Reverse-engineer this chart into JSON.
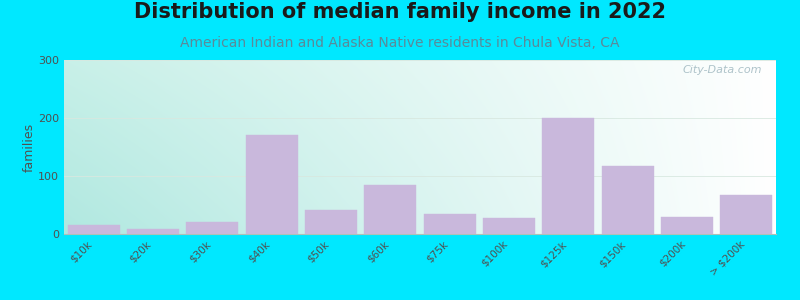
{
  "title": "Distribution of median family income in 2022",
  "subtitle": "American Indian and Alaska Native residents in Chula Vista, CA",
  "ylabel": "families",
  "categories": [
    "$10k",
    "$20k",
    "$30k",
    "$40k",
    "$50k",
    "$60k",
    "$75k",
    "$100k",
    "$125k",
    "$150k",
    "$200k",
    "> $200k"
  ],
  "values": [
    15,
    8,
    20,
    170,
    42,
    85,
    35,
    28,
    200,
    118,
    30,
    68
  ],
  "bar_color": "#c9b8dc",
  "bar_edge_color": "#c9b8dc",
  "background_outer": "#00e8ff",
  "plot_bg_color_topleft": "#c8f0e8",
  "plot_bg_color_topright": "#f0f8f5",
  "plot_bg_color_bottomleft": "#b0e8e0",
  "plot_bg_color_bottomright": "#ffffff",
  "title_fontsize": 15,
  "subtitle_fontsize": 10,
  "subtitle_color": "#5a8a9a",
  "ylabel_fontsize": 9,
  "tick_label_fontsize": 7.5,
  "ylim": [
    0,
    300
  ],
  "yticks": [
    0,
    100,
    200,
    300
  ],
  "watermark_text": "City-Data.com",
  "watermark_color": "#a0b8c0",
  "grid_color": "#d8e8e0",
  "grid_linewidth": 0.6
}
